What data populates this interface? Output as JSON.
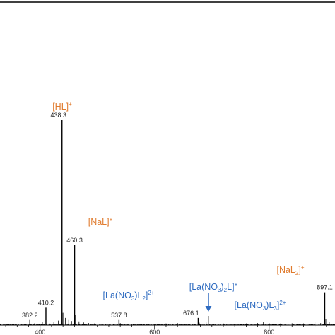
{
  "chart_data": {
    "type": "line",
    "title": "",
    "xlabel": "",
    "ylabel": "",
    "xlim": [
      330,
      915
    ],
    "ylim": [
      0,
      100
    ],
    "xticks": [
      400,
      600,
      800
    ],
    "x_minor_step": 20,
    "peaks": [
      {
        "mz": 382.2,
        "intensity": 2.5,
        "label": "382.2"
      },
      {
        "mz": 410.2,
        "intensity": 8.5,
        "label": "410.2"
      },
      {
        "mz": 438.3,
        "intensity": 100,
        "label": "438.3"
      },
      {
        "mz": 460.3,
        "intensity": 39,
        "label": "460.3"
      },
      {
        "mz": 537.8,
        "intensity": 2.5,
        "label": "537.8"
      },
      {
        "mz": 676.1,
        "intensity": 3.5,
        "label": "676.1"
      },
      {
        "mz": 897.1,
        "intensity": 16,
        "label": "897.1"
      }
    ],
    "minor_peaks": [
      {
        "mz": 345,
        "intensity": 0.6
      },
      {
        "mz": 352,
        "intensity": 0.5
      },
      {
        "mz": 368,
        "intensity": 0.5
      },
      {
        "mz": 390,
        "intensity": 0.8
      },
      {
        "mz": 398,
        "intensity": 0.7
      },
      {
        "mz": 404,
        "intensity": 1.5
      },
      {
        "mz": 416,
        "intensity": 1.0
      },
      {
        "mz": 424,
        "intensity": 1.6
      },
      {
        "mz": 432,
        "intensity": 2.2
      },
      {
        "mz": 440,
        "intensity": 6.0
      },
      {
        "mz": 444,
        "intensity": 3.5
      },
      {
        "mz": 450,
        "intensity": 2.5
      },
      {
        "mz": 455,
        "intensity": 2.0
      },
      {
        "mz": 462,
        "intensity": 5.0
      },
      {
        "mz": 468,
        "intensity": 1.8
      },
      {
        "mz": 476,
        "intensity": 1.3
      },
      {
        "mz": 485,
        "intensity": 1.0
      },
      {
        "mz": 495,
        "intensity": 0.8
      },
      {
        "mz": 505,
        "intensity": 0.7
      },
      {
        "mz": 515,
        "intensity": 0.6
      },
      {
        "mz": 540,
        "intensity": 1.0
      },
      {
        "mz": 560,
        "intensity": 0.6
      },
      {
        "mz": 575,
        "intensity": 0.7
      },
      {
        "mz": 590,
        "intensity": 0.5
      },
      {
        "mz": 620,
        "intensity": 0.8
      },
      {
        "mz": 640,
        "intensity": 1.0
      },
      {
        "mz": 655,
        "intensity": 0.6
      },
      {
        "mz": 678,
        "intensity": 1.2
      },
      {
        "mz": 690,
        "intensity": 1.5
      },
      {
        "mz": 694,
        "intensity": 4.5
      },
      {
        "mz": 702,
        "intensity": 1.0
      },
      {
        "mz": 720,
        "intensity": 0.8
      },
      {
        "mz": 740,
        "intensity": 0.7
      },
      {
        "mz": 760,
        "intensity": 0.8
      },
      {
        "mz": 780,
        "intensity": 1.0
      },
      {
        "mz": 790,
        "intensity": 1.4
      },
      {
        "mz": 800,
        "intensity": 1.0
      },
      {
        "mz": 820,
        "intensity": 0.8
      },
      {
        "mz": 840,
        "intensity": 0.9
      },
      {
        "mz": 860,
        "intensity": 0.8
      },
      {
        "mz": 870,
        "intensity": 0.7
      },
      {
        "mz": 880,
        "intensity": 1.5
      },
      {
        "mz": 890,
        "intensity": 1.0
      },
      {
        "mz": 899,
        "intensity": 3.0
      },
      {
        "mz": 905,
        "intensity": 1.5
      }
    ],
    "annotations": [
      {
        "base": "[HL]",
        "sup": "+",
        "color": "#E07B2E"
      },
      {
        "base": "[NaL]",
        "sup": "+",
        "color": "#E07B2E"
      },
      {
        "base": "[La(NO",
        "sub": "3",
        "mid": ")L",
        "sub2": "2",
        "end": "]",
        "sup": "2+",
        "color": "#2E6BC0"
      },
      {
        "base": "[La(NO",
        "sub": "3",
        "mid": ")",
        "sub2": "2",
        "mid2": "L]",
        "sup": "+",
        "color": "#2E6BC0"
      },
      {
        "base": "[La(NO",
        "sub": "3",
        "mid": ")L",
        "sub2": "3",
        "end": "]",
        "sup": "2+",
        "color": "#2E6BC0"
      },
      {
        "base": "[NaL",
        "sub": "2",
        "end": "]",
        "sup": "+",
        "color": "#E07B2E"
      }
    ],
    "arrow_at_mz": 694,
    "colors": {
      "axis": "#000000",
      "spectrum": "#000000",
      "orange": "#E07B2E",
      "blue": "#2E6BC0"
    }
  }
}
